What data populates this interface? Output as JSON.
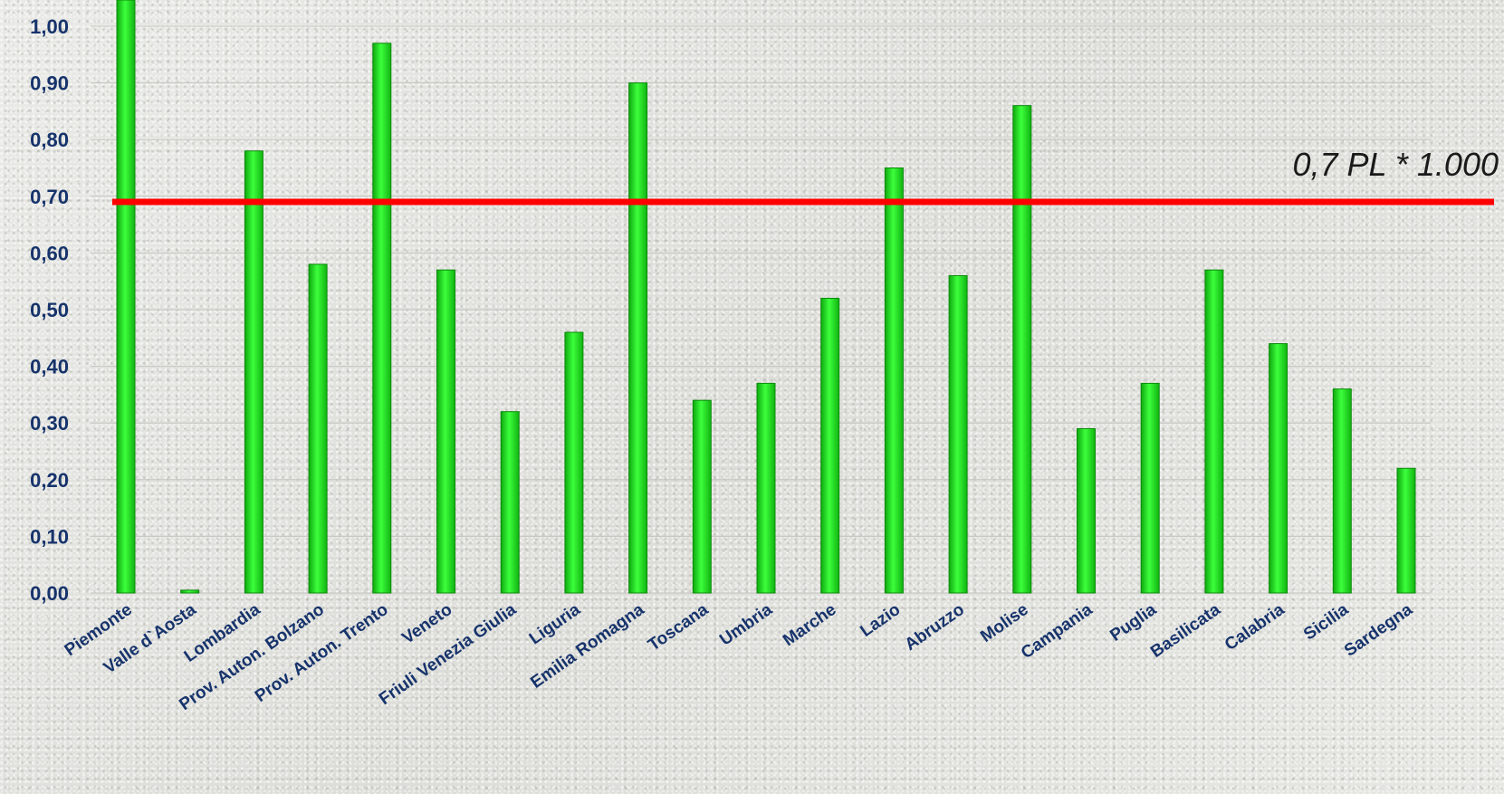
{
  "chart_data": {
    "type": "bar",
    "categories": [
      "Piemonte",
      "Valle d`Aosta",
      "Lombardia",
      "Prov. Auton. Bolzano",
      "Prov. Auton. Trento",
      "Veneto",
      "Friuli Venezia Giulia",
      "Liguria",
      "Emilia Romagna",
      "Toscana",
      "Umbria",
      "Marche",
      "Lazio",
      "Abruzzo",
      "Molise",
      "Campania",
      "Puglia",
      "Basilicata",
      "Calabria",
      "Sicilia",
      "Sardegna"
    ],
    "values": [
      1.05,
      0.005,
      0.78,
      0.58,
      0.97,
      0.57,
      0.32,
      0.46,
      0.9,
      0.34,
      0.37,
      0.52,
      0.75,
      0.56,
      0.86,
      0.29,
      0.37,
      0.57,
      0.44,
      0.36,
      0.22
    ],
    "yticks": [
      "0,00",
      "0,10",
      "0,20",
      "0,30",
      "0,40",
      "0,50",
      "0,60",
      "0,70",
      "0,80",
      "0,90",
      "1,00"
    ],
    "ylim": [
      0,
      1.0
    ],
    "grid": true,
    "bar_color": "#22e822",
    "threshold": {
      "value": 0.69,
      "label": "0,7 PL * 1.000",
      "color": "#ff0000"
    }
  }
}
